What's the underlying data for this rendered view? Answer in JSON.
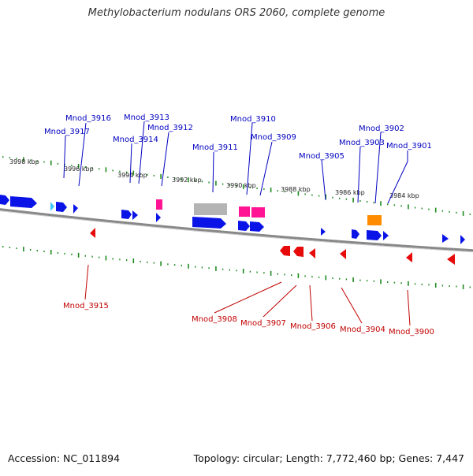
{
  "title": "Methylobacterium nodulans ORS 2060, complete genome",
  "footer": {
    "accession": "Accession: NC_011894",
    "summary": "Topology: circular; Length: 7,772,460 bp; Genes: 7,447"
  },
  "colors": {
    "plus_strand": "#0a14e6",
    "minus_strand": "#e60a0a",
    "rna_magenta": "#ff1493",
    "pseudo_gray": "#b4b4b4",
    "orange": "#ff8c00",
    "light_blue": "#3cc8ff",
    "tick_green": "#1f8a1f",
    "label_blue": "#0000c0",
    "label_red": "#c00000",
    "backbone": "#808080"
  },
  "scale_labels_top": [
    "3998 kbp",
    "3996 kbp",
    "3994 kbp",
    "3992 kbp",
    "3990 kbp",
    "3988 kbp",
    "3986 kbp",
    "3984 kbp"
  ],
  "top_labels": [
    "Mnod_3916",
    "Mnod_3917",
    "Mnod_3913",
    "Mnod_3912",
    "Mnod_3914",
    "Mnod_3911",
    "Mnod_3910",
    "Mnod_3909",
    "Mnod_3905",
    "Mnod_3902",
    "Mnod_3903",
    "Mnod_3901"
  ],
  "bottom_labels": [
    "Mnod_3915",
    "Mnod_3908",
    "Mnod_3907",
    "Mnod_3906",
    "Mnod_3904",
    "Mnod_3900"
  ]
}
